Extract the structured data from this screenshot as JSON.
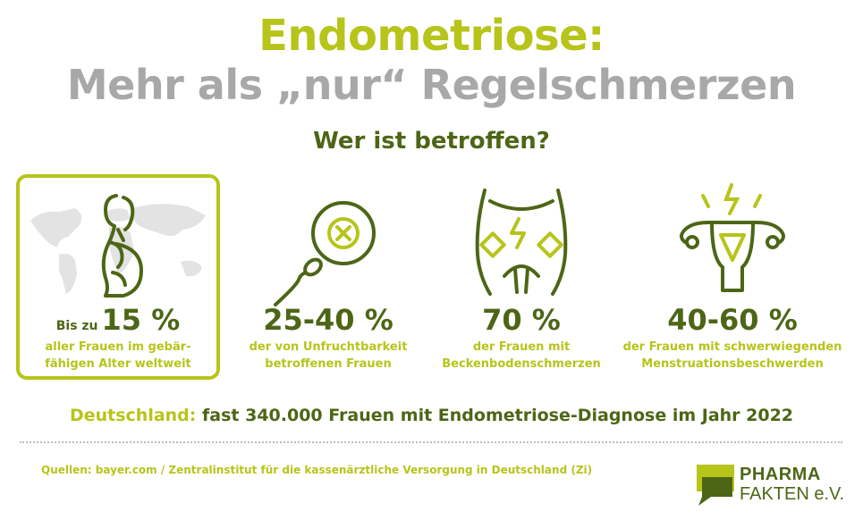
{
  "header": {
    "title": "Endometriose:",
    "subtitle": "Mehr als „nur“ Regelschmerzen",
    "question": "Wer ist betroffen?"
  },
  "stats": [
    {
      "prefix": "Bis zu",
      "value": "15 %",
      "desc_line1": "aller Frauen im gebär-",
      "desc_line2": "fähigen Alter weltweit",
      "icon": "pregnant-woman-world-map-icon"
    },
    {
      "value": "25-40 %",
      "desc_line1": "der von Unfruchtbarkeit",
      "desc_line2": "betroffenen Frauen",
      "icon": "sperm-egg-blocked-icon"
    },
    {
      "value": "70 %",
      "desc_line1": "der Frauen mit",
      "desc_line2": "Beckenbodenschmerzen",
      "icon": "pelvis-pain-icon"
    },
    {
      "value": "40-60 %",
      "desc_line1": "der Frauen mit schwerwiegenden",
      "desc_line2": "Menstruationsbeschwerden",
      "icon": "uterus-pain-icon"
    }
  ],
  "germany": {
    "label": "Deutschland:",
    "text": "fast 340.000 Frauen mit Endometriose-Diagnose im Jahr 2022"
  },
  "sources": "Quellen: bayer.com / Zentralinstitut für die kassenärztliche Versorgung in Deutschland (Zi)",
  "logo": {
    "line1": "PHARMA",
    "line2": "FAKTEN e.V."
  },
  "colors": {
    "lime": "#b7c41a",
    "dark_green": "#4d6616",
    "gray": "#a8a8a8"
  }
}
